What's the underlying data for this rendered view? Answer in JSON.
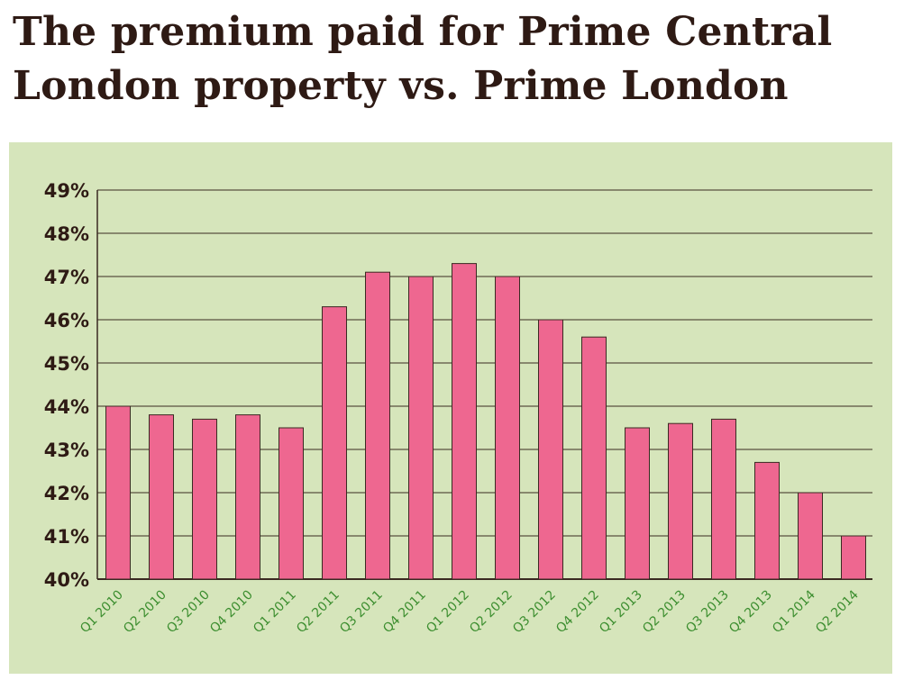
{
  "title": "The premium paid for Prime Central London property vs. Prime London",
  "colors": {
    "bar": "#ee6790",
    "bar_edge": "#3a2a22",
    "panel": "#d6e5bb",
    "grid": "#3a2a22",
    "title": "#2e1a14",
    "ytick": "#2e1a14",
    "xtick": "#3c8e2f"
  },
  "chart_data": {
    "type": "bar",
    "title": "The premium paid for Prime Central London property vs. Prime London",
    "xlabel": "",
    "ylabel": "",
    "ylim": [
      40,
      49
    ],
    "grid": true,
    "yticks": [
      "40%",
      "41%",
      "42%",
      "43%",
      "44%",
      "45%",
      "46%",
      "47%",
      "48%",
      "49%"
    ],
    "categories": [
      "Q1 2010",
      "Q2 2010",
      "Q3 2010",
      "Q4 2010",
      "Q1 2011",
      "Q2 2011",
      "Q3 2011",
      "Q4 2011",
      "Q1 2012",
      "Q2 2012",
      "Q3 2012",
      "Q4 2012",
      "Q1 2013",
      "Q2 2013",
      "Q3 2013",
      "Q4 2013",
      "Q1 2014",
      "Q2 2014"
    ],
    "values": [
      44.0,
      43.8,
      43.7,
      43.8,
      43.5,
      46.3,
      47.1,
      47.0,
      47.3,
      47.0,
      46.0,
      45.6,
      43.5,
      43.6,
      43.7,
      42.7,
      42.0,
      41.0
    ]
  }
}
